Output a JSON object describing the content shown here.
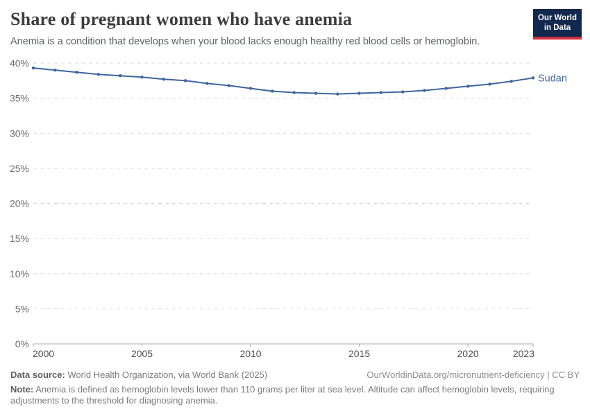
{
  "header": {
    "title": "Share of pregnant women who have anemia",
    "subtitle": "Anemia is a condition that develops when your blood lacks enough healthy red blood cells or hemoglobin.",
    "logo": {
      "line1": "Our World",
      "line2": "in Data",
      "bg_color": "#12294d",
      "accent_color": "#d22e41"
    }
  },
  "chart_data": {
    "type": "line",
    "title": "Share of pregnant women who have anemia",
    "x": [
      2000,
      2001,
      2002,
      2003,
      2004,
      2005,
      2006,
      2007,
      2008,
      2009,
      2010,
      2011,
      2012,
      2013,
      2014,
      2015,
      2016,
      2017,
      2018,
      2019,
      2020,
      2021,
      2022,
      2023
    ],
    "series": [
      {
        "name": "Sudan",
        "color": "#3d659e",
        "values": [
          39.3,
          39.0,
          38.7,
          38.4,
          38.2,
          38.0,
          37.7,
          37.5,
          37.1,
          36.8,
          36.4,
          36.0,
          35.8,
          35.7,
          35.6,
          35.7,
          35.8,
          35.9,
          36.1,
          36.4,
          36.7,
          37.0,
          37.4,
          37.9
        ]
      }
    ],
    "xlabel": "",
    "ylabel": "",
    "ylim": [
      0,
      40
    ],
    "yticks": [
      0,
      5,
      10,
      15,
      20,
      25,
      30,
      35,
      40
    ],
    "ytick_suffix": "%",
    "xticks": [
      2000,
      2005,
      2010,
      2015,
      2020,
      2023
    ],
    "grid": "horizontal-dashed",
    "legend_position": "end-of-line",
    "colors": {
      "gridline": "#d9d9d9",
      "axis": "#a5a5a5",
      "y_tick_label": "#6c6c6c",
      "x_tick_label": "#4d4d4d"
    }
  },
  "footer": {
    "data_source_label": "Data source:",
    "data_source": "World Health Organization, via World Bank (2025)",
    "url_line": "OurWorldinData.org/micronutrient-deficiency | CC BY",
    "note_label": "Note:",
    "note": "Anemia is defined as hemoglobin levels lower than 110 grams per liter at sea level. Altitude can affect hemoglobin levels, requiring adjustments to the threshold for diagnosing anemia."
  }
}
